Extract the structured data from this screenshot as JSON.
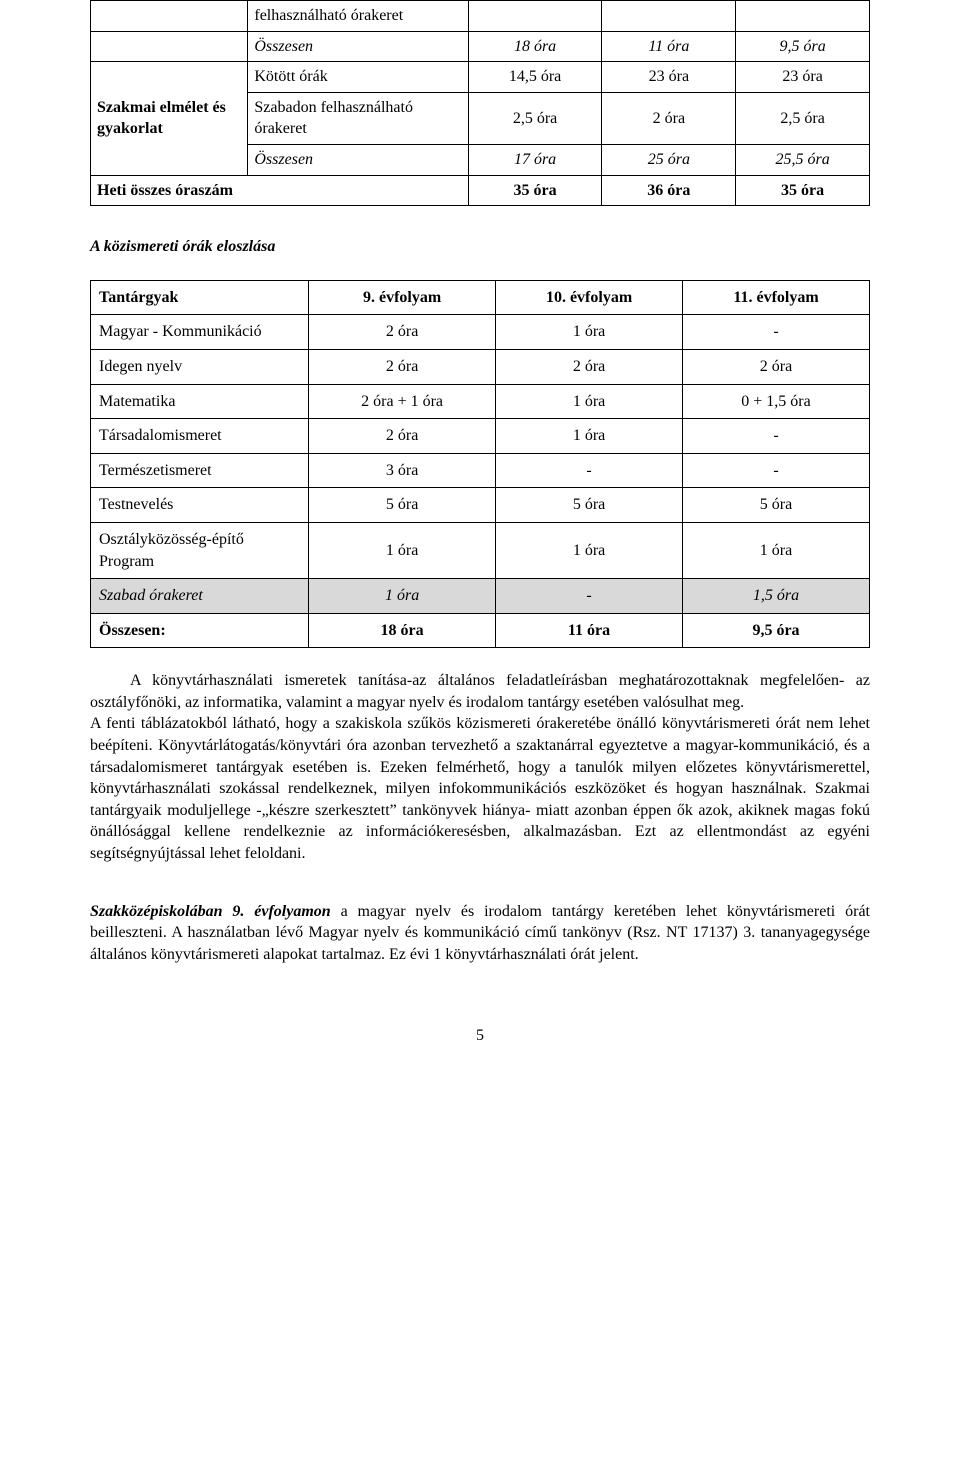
{
  "table1": {
    "rows": [
      {
        "c1_span": false,
        "c2": {
          "text": "felhasználható órakeret",
          "cls": ""
        },
        "c3": "",
        "c4": "",
        "c5": ""
      },
      {
        "c1_span": false,
        "c2": {
          "text": "Összesen",
          "cls": "italic"
        },
        "c3": "18 óra",
        "c3_cls": "italic",
        "c4": "11 óra",
        "c4_cls": "italic",
        "c5": "9,5 óra",
        "c5_cls": "italic"
      },
      {
        "c1_start": true,
        "c1_rowspan": 3,
        "c1": {
          "text": "Szakmai elmélet és gyakorlat",
          "cls": "bold"
        },
        "c2": {
          "text": "Kötött órák",
          "cls": ""
        },
        "c3": "14,5 óra",
        "c4": "23 óra",
        "c5": "23 óra"
      },
      {
        "c1_span": false,
        "c2": {
          "text": "Szabadon felhasználható órakeret",
          "cls": ""
        },
        "c3": "2,5 óra",
        "c4": "2 óra",
        "c5": "2,5 óra"
      },
      {
        "c1_span": false,
        "c2": {
          "text": "Összesen",
          "cls": "italic"
        },
        "c3": "17 óra",
        "c3_cls": "italic",
        "c4": "25 óra",
        "c4_cls": "italic",
        "c5": "25,5 óra",
        "c5_cls": "italic"
      },
      {
        "full_row": true,
        "c12": {
          "text": "Heti összes óraszám",
          "cls": "bold"
        },
        "c3": "35 óra",
        "c3_cls": "bold",
        "c4": "36 óra",
        "c4_cls": "bold",
        "c5": "35 óra",
        "c5_cls": "bold"
      }
    ]
  },
  "section_title": "A közismereti órák eloszlása",
  "table2": {
    "header": {
      "subject": "Tantárgyak",
      "g9": "9. évfolyam",
      "g10": "10. évfolyam",
      "g11": "11. évfolyam"
    },
    "rows": [
      {
        "subject": "Magyar - Kommunikáció",
        "g9": "2 óra",
        "g10": "1 óra",
        "g11": "-"
      },
      {
        "subject": "Idegen nyelv",
        "g9": "2 óra",
        "g10": "2 óra",
        "g11": "2 óra"
      },
      {
        "subject": "Matematika",
        "g9": "2 óra + 1 óra",
        "g10": "1 óra",
        "g11": "0 + 1,5 óra"
      },
      {
        "subject": "Társadalomismeret",
        "g9": "2 óra",
        "g10": "1 óra",
        "g11": "-"
      },
      {
        "subject": "Természetismeret",
        "g9": "3 óra",
        "g10": "-",
        "g11": "-"
      },
      {
        "subject": "Testnevelés",
        "g9": "5 óra",
        "g10": "5 óra",
        "g11": "5 óra"
      },
      {
        "subject": "Osztályközösség-építő Program",
        "g9": "1 óra",
        "g10": "1 óra",
        "g11": "1 óra"
      }
    ],
    "shade_row": {
      "subject": "Szabad órakeret",
      "g9": "1 óra",
      "g10": "-",
      "g11": "1,5 óra"
    },
    "totals_row": {
      "subject": "Összesen:",
      "g9": "18 óra",
      "g10": "11 óra",
      "g11": "9,5 óra"
    }
  },
  "paragraphs": {
    "p1": "A könyvtárhasználati ismeretek tanítása-az általános feladatleírásban meghatározottaknak megfelelően- az osztályfőnöki, az informatika, valamint a magyar nyelv és irodalom tantárgy esetében valósulhat meg.",
    "p2": "A fenti táblázatokból látható, hogy a szakiskola szűkös közismereti órakeretébe önálló könyvtárismereti órát nem lehet beépíteni. Könyvtárlátogatás/könyvtári óra azonban tervezhető a szaktanárral egyeztetve a magyar-kommunikáció, és a társadalomismeret tantárgyak esetében is. Ezeken felmérhető, hogy a tanulók milyen előzetes könyvtárismerettel, könyvtárhasználati szokással rendelkeznek, milyen infokommunikációs eszközöket és hogyan használnak. Szakmai tantárgyaik moduljellege -„készre szerkesztett” tankönyvek hiánya- miatt azonban éppen ők azok, akiknek magas fokú önállósággal kellene rendelkeznie az információkeresésben, alkalmazásban. Ezt az ellentmondást az egyéni segítségnyújtással lehet feloldani.",
    "p3_lead_bold": "Szakközépiskolában 9. évfolyamon",
    "p3_rest": " a magyar nyelv és irodalom tantárgy keretében lehet könyvtárismereti órát beilleszteni. A használatban lévő Magyar nyelv és kommunikáció című tankönyv (Rsz. NT 17137) 3. tananyagegysége általános könyvtárismereti alapokat tartalmaz. Ez évi 1 könyvtárhasználati órát jelent."
  },
  "page_number": "5"
}
